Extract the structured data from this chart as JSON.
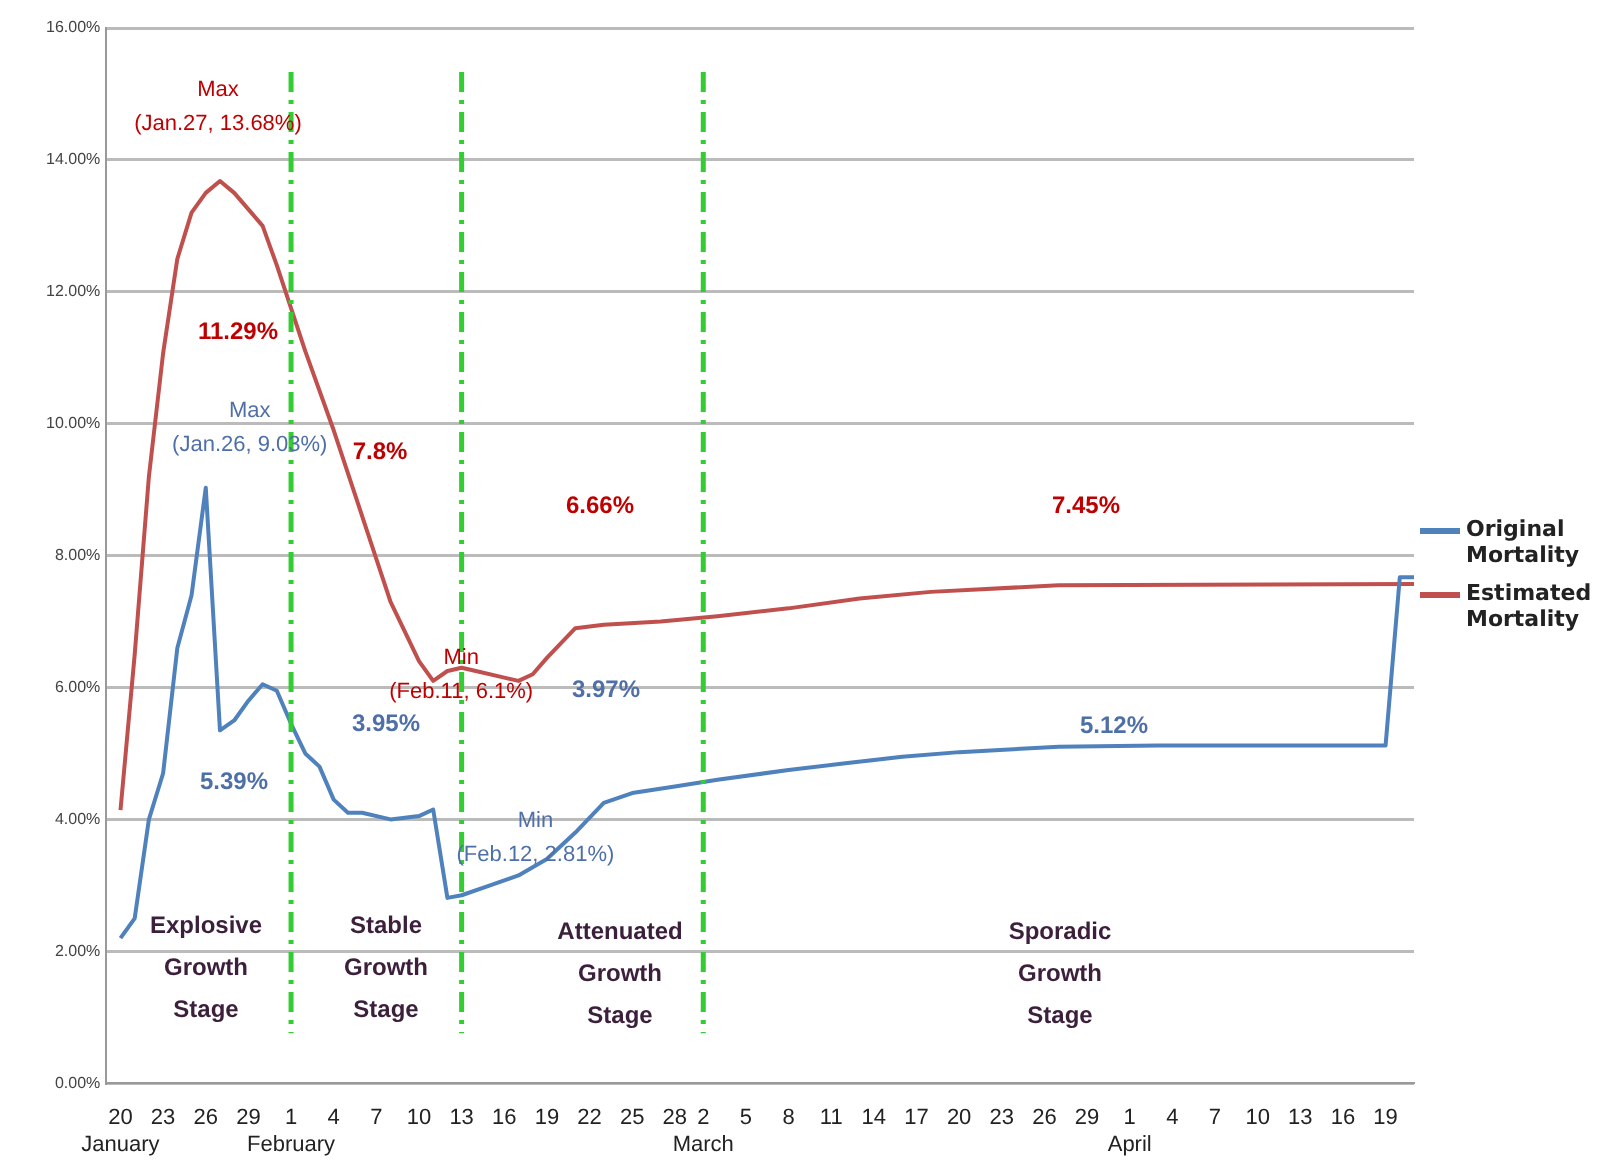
{
  "chart_data": {
    "type": "line",
    "xlim": [
      "--01-19",
      "--04-21"
    ],
    "xticks": [
      {
        "value": "--01-20",
        "label": "20\nJanuary"
      },
      {
        "value": "--01-23",
        "label": "23"
      },
      {
        "value": "--01-26",
        "label": "26"
      },
      {
        "value": "--01-29",
        "label": "29"
      },
      {
        "value": "--02-01",
        "label": "1\nFebruary"
      },
      {
        "value": "--02-04",
        "label": "4"
      },
      {
        "value": "--02-07",
        "label": "7"
      },
      {
        "value": "--02-10",
        "label": "10"
      },
      {
        "value": "--02-13",
        "label": "13"
      },
      {
        "value": "--02-16",
        "label": "16"
      },
      {
        "value": "--02-19",
        "label": "19"
      },
      {
        "value": "--02-22",
        "label": "22"
      },
      {
        "value": "--02-25",
        "label": "25"
      },
      {
        "value": "--02-28",
        "label": "28"
      },
      {
        "value": "--03-02",
        "label": "2\nMarch"
      },
      {
        "value": "--03-05",
        "label": "5"
      },
      {
        "value": "--03-08",
        "label": "8"
      },
      {
        "value": "--03-11",
        "label": "11"
      },
      {
        "value": "--03-14",
        "label": "14"
      },
      {
        "value": "--03-17",
        "label": "17"
      },
      {
        "value": "--03-20",
        "label": "20"
      },
      {
        "value": "--03-23",
        "label": "23"
      },
      {
        "value": "--03-26",
        "label": "26"
      },
      {
        "value": "--03-29",
        "label": "29"
      },
      {
        "value": "--04-01",
        "label": "1\nApril"
      },
      {
        "value": "--04-04",
        "label": "4"
      },
      {
        "value": "--04-07",
        "label": "7"
      },
      {
        "value": "--04-10",
        "label": "10"
      },
      {
        "value": "--04-13",
        "label": "13"
      },
      {
        "value": "--04-16",
        "label": "16"
      },
      {
        "value": "--04-19",
        "label": "19"
      }
    ],
    "ylim": [
      0,
      16
    ],
    "yticks": [
      {
        "value": 0,
        "label": "0.00%"
      },
      {
        "value": 2,
        "label": "2.00%"
      },
      {
        "value": 4,
        "label": "4.00%"
      },
      {
        "value": 6,
        "label": "6.00%"
      },
      {
        "value": 8,
        "label": "8.00%"
      },
      {
        "value": 10,
        "label": "10.00%"
      },
      {
        "value": 12,
        "label": "12.00%"
      },
      {
        "value": 14,
        "label": "14.00%"
      },
      {
        "value": 16,
        "label": "16.00%"
      }
    ],
    "grid": "y",
    "legend": "right",
    "marker": "none",
    "line_style": "solid",
    "series": [
      {
        "name": "Original Mortality",
        "color": "#4f81bd",
        "x": [
          "--01-20",
          "--01-21",
          "--01-22",
          "--01-23",
          "--01-24",
          "--01-25",
          "--01-26",
          "--01-27",
          "--01-28",
          "--01-29",
          "--01-30",
          "--01-31",
          "--02-01",
          "--02-02",
          "--02-03",
          "--02-04",
          "--02-05",
          "--02-06",
          "--02-08",
          "--02-10",
          "--02-11",
          "--02-12",
          "--02-13",
          "--02-15",
          "--02-17",
          "--02-19",
          "--02-21",
          "--02-23",
          "--02-25",
          "--02-28",
          "--03-03",
          "--03-08",
          "--03-12",
          "--03-16",
          "--03-20",
          "--03-27",
          "--04-03",
          "--04-19",
          "--04-20",
          "--04-21"
        ],
        "values": [
          2.2,
          2.5,
          4.0,
          4.7,
          6.6,
          7.4,
          9.03,
          5.35,
          5.5,
          5.8,
          6.05,
          5.95,
          5.45,
          5.0,
          4.8,
          4.3,
          4.1,
          4.1,
          4.0,
          4.05,
          4.15,
          2.81,
          2.85,
          3.0,
          3.15,
          3.4,
          3.8,
          4.25,
          4.4,
          4.5,
          4.6,
          4.75,
          4.85,
          4.95,
          5.02,
          5.1,
          5.12,
          5.12,
          7.67,
          7.67
        ]
      },
      {
        "name": "Estimated Mortality",
        "color": "#c0504d",
        "x": [
          "--01-20",
          "--01-21",
          "--01-22",
          "--01-23",
          "--01-24",
          "--01-25",
          "--01-26",
          "--01-27",
          "--01-28",
          "--01-30",
          "--01-31",
          "--02-02",
          "--02-04",
          "--02-06",
          "--02-08",
          "--02-10",
          "--02-11",
          "--02-12",
          "--02-13",
          "--02-14",
          "--02-16",
          "--02-17",
          "--02-18",
          "--02-19",
          "--02-21",
          "--02-23",
          "--02-27",
          "--03-03",
          "--03-08",
          "--03-13",
          "--03-18",
          "--03-27",
          "--04-21"
        ],
        "values": [
          4.14,
          6.5,
          9.2,
          11.07,
          12.5,
          13.2,
          13.5,
          13.68,
          13.5,
          13.0,
          12.4,
          11.1,
          9.9,
          8.6,
          7.3,
          6.4,
          6.1,
          6.25,
          6.3,
          6.25,
          6.15,
          6.1,
          6.2,
          6.45,
          6.9,
          6.95,
          7.0,
          7.08,
          7.2,
          7.35,
          7.45,
          7.55,
          7.57
        ]
      }
    ],
    "ref_lines": [
      {
        "axis": "x",
        "value": "--02-01",
        "color": "#33cc33",
        "line_style": "dashed"
      },
      {
        "axis": "x",
        "value": "--02-13",
        "color": "#33cc33",
        "line_style": "dashed"
      },
      {
        "axis": "x",
        "value": "--03-02",
        "color": "#33cc33",
        "line_style": "dashed"
      }
    ],
    "annotations": [
      {
        "text": "Max\n(Jan.27, 13.68%)",
        "x": "--01-27",
        "y": 13.68
      },
      "11.29%",
      "7.8%",
      {
        "text": "Min\n(Feb.11, 6.1%)",
        "x": "--02-11",
        "y": 6.1
      },
      "6.66%",
      "7.45%",
      {
        "text": "Max\n(Jan.26, 9.03%)",
        "x": "--01-26",
        "y": 9.03
      },
      "5.39%",
      "3.95%",
      {
        "text": "Min\n(Feb.12, 2.81%)",
        "x": "--02-12",
        "y": 2.81
      },
      "3.97%",
      "5.12%",
      "Explosive\nGrowth\nStage",
      "Stable\nGrowth\nStage",
      "Attenuated\nGrowth\nStage",
      "Sporadic\nGrowth\nStage"
    ]
  }
}
